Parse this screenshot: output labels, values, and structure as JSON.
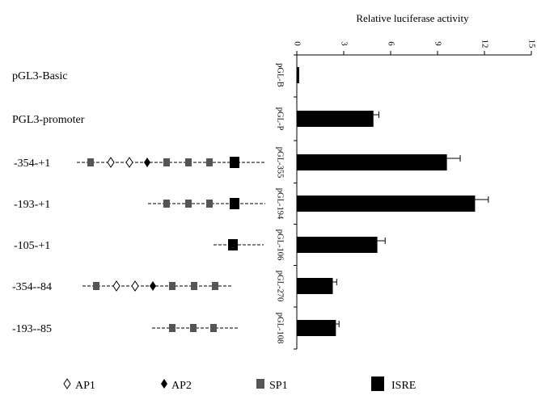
{
  "chart_data": {
    "type": "bar",
    "orientation": "horizontal",
    "title": "Relative luciferase activity",
    "xlim": [
      0,
      15
    ],
    "ticks": [
      "0",
      "3",
      "6",
      "9",
      "12",
      "15"
    ],
    "tick_values": [
      0,
      3,
      6,
      9,
      12,
      15
    ],
    "tick_position": "top",
    "grid": false,
    "constructs": [
      {
        "name": "pGL3-Basic",
        "short": "pGL-B",
        "value": 0.15,
        "error": 0.0
      },
      {
        "name": "PGL3-promoter",
        "short": "pGL-P",
        "value": 4.9,
        "error": 0.35
      },
      {
        "name": "-354-+1",
        "short": "pGL-355",
        "value": 9.6,
        "error": 0.85
      },
      {
        "name": "-193-+1",
        "short": "pGL-194",
        "value": 11.4,
        "error": 0.85
      },
      {
        "name": "-105-+1",
        "short": "pGL-106",
        "value": 5.15,
        "error": 0.5
      },
      {
        "name": "-354--84",
        "short": "pGL-270",
        "value": 2.3,
        "error": 0.25
      },
      {
        "name": "-193--85",
        "short": "pGL-108",
        "value": 2.5,
        "error": 0.2
      }
    ]
  },
  "legend": [
    {
      "symbol": "AP1",
      "label": "AP1"
    },
    {
      "symbol": "AP2",
      "label": "AP2"
    },
    {
      "symbol": "SP1",
      "label": "SP1"
    },
    {
      "symbol": "ISRE",
      "label": "ISRE"
    }
  ],
  "colors": {
    "bar": "#000000",
    "sp1": "#555555",
    "isre": "#000000",
    "line": "#000000"
  }
}
